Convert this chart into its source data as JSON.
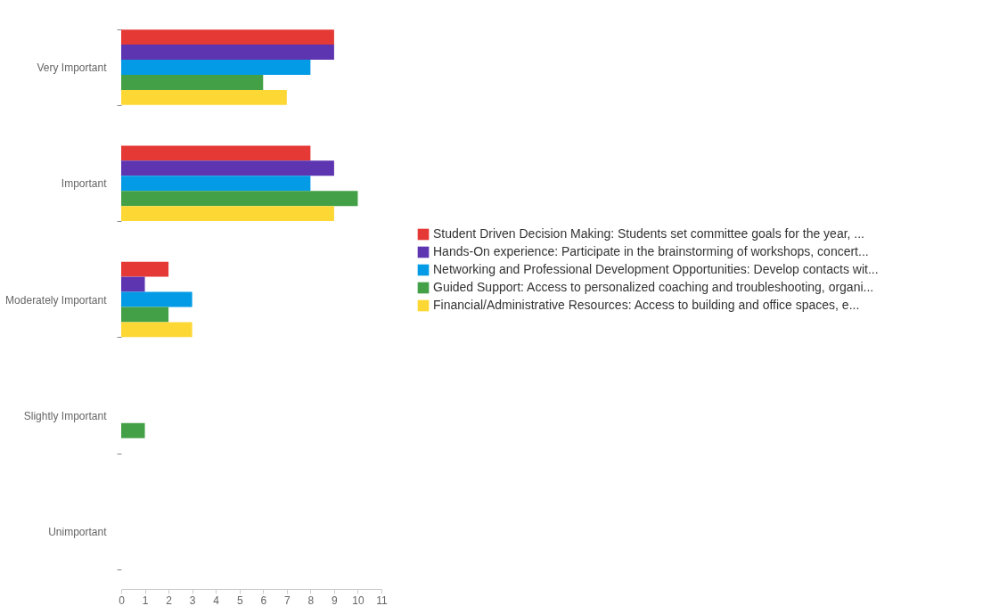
{
  "chart_data": {
    "type": "bar",
    "orientation": "horizontal",
    "categories": [
      "Very Important",
      "Important",
      "Moderately Important",
      "Slightly Important",
      "Unimportant"
    ],
    "series": [
      {
        "name": "Student Driven Decision Making: Students set committee goals for the year, ...",
        "color": "#e53935",
        "values": [
          9,
          8,
          2,
          null,
          null
        ]
      },
      {
        "name": "Hands-On experience: Participate in the brainstorming of workshops, concert...",
        "color": "#5e35b1",
        "values": [
          9,
          9,
          1,
          null,
          null
        ]
      },
      {
        "name": "Networking and Professional Development Opportunities: Develop contacts wit...",
        "color": "#039be5",
        "values": [
          8,
          8,
          3,
          null,
          null
        ]
      },
      {
        "name": "Guided Support: Access to personalized coaching and troubleshooting, organi...",
        "color": "#43a047",
        "values": [
          6,
          10,
          2,
          1,
          null
        ]
      },
      {
        "name": "Financial/Administrative Resources: Access to building and office spaces, e...",
        "color": "#fdd835",
        "values": [
          7,
          9,
          3,
          null,
          null
        ]
      }
    ],
    "xlim": [
      0,
      11
    ],
    "xticks": [
      0,
      1,
      2,
      3,
      4,
      5,
      6,
      7,
      8,
      9,
      10,
      11
    ],
    "grid": false,
    "legend": "right"
  }
}
